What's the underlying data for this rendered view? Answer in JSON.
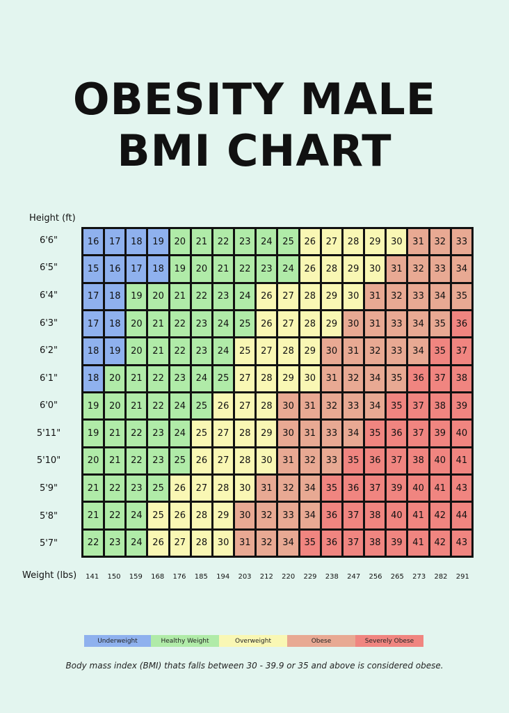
{
  "title_line1": "OBESITY MALE",
  "title_line2": "BMI CHART",
  "footnote": "Body mass index (BMI) thats falls between 30 - 39.9 or 35 and above is considered obese.",
  "colors": {
    "underweight": "#8fb1ee",
    "healthy": "#b0eba8",
    "overweight": "#f9f7b4",
    "obese": "#e8a993",
    "severe": "#f08580"
  },
  "legend": [
    {
      "label": "Underweight",
      "key": "underweight"
    },
    {
      "label": "Healthy Weight",
      "key": "healthy"
    },
    {
      "label": "Overweight",
      "key": "overweight"
    },
    {
      "label": "Obese",
      "key": "obese"
    },
    {
      "label": "Severely Obese",
      "key": "severe"
    }
  ],
  "chart_data": {
    "type": "heatmap",
    "ylabel": "Height (ft)",
    "xlabel": "Weight (lbs)",
    "rows": [
      "6'6\"",
      "6'5\"",
      "6'4\"",
      "6'3\"",
      "6'2\"",
      "6'1\"",
      "6'0\"",
      "5'11\"",
      "5'10\"",
      "5'9\"",
      "5'8\"",
      "5'7\""
    ],
    "columns": [
      "141",
      "150",
      "159",
      "168",
      "176",
      "185",
      "194",
      "203",
      "212",
      "220",
      "229",
      "238",
      "247",
      "256",
      "265",
      "273",
      "282",
      "291"
    ],
    "values": [
      [
        16,
        17,
        18,
        19,
        20,
        21,
        22,
        23,
        24,
        25,
        26,
        27,
        28,
        29,
        30,
        31,
        32,
        33
      ],
      [
        15,
        16,
        17,
        18,
        19,
        20,
        21,
        22,
        23,
        24,
        26,
        28,
        29,
        30,
        31,
        32,
        33,
        34
      ],
      [
        17,
        18,
        19,
        20,
        21,
        22,
        23,
        24,
        26,
        27,
        28,
        29,
        30,
        31,
        32,
        33,
        34,
        35
      ],
      [
        17,
        18,
        20,
        21,
        22,
        23,
        24,
        25,
        26,
        27,
        28,
        29,
        30,
        31,
        33,
        34,
        35,
        36
      ],
      [
        18,
        19,
        20,
        21,
        22,
        23,
        24,
        25,
        27,
        28,
        29,
        30,
        31,
        32,
        33,
        34,
        35,
        37
      ],
      [
        18,
        20,
        21,
        22,
        23,
        24,
        25,
        27,
        28,
        29,
        30,
        31,
        32,
        34,
        35,
        36,
        37,
        38
      ],
      [
        19,
        20,
        21,
        22,
        24,
        25,
        26,
        27,
        28,
        30,
        31,
        32,
        33,
        34,
        35,
        37,
        38,
        39
      ],
      [
        19,
        21,
        22,
        23,
        24,
        25,
        27,
        28,
        29,
        30,
        31,
        33,
        34,
        35,
        36,
        37,
        39,
        40
      ],
      [
        20,
        21,
        22,
        23,
        25,
        26,
        27,
        28,
        30,
        31,
        32,
        33,
        35,
        36,
        37,
        38,
        40,
        41
      ],
      [
        21,
        22,
        23,
        25,
        26,
        27,
        28,
        30,
        31,
        32,
        34,
        35,
        36,
        37,
        39,
        40,
        41,
        43
      ],
      [
        21,
        22,
        24,
        25,
        26,
        28,
        29,
        30,
        32,
        33,
        34,
        36,
        37,
        38,
        40,
        41,
        42,
        44
      ],
      [
        22,
        23,
        24,
        26,
        27,
        28,
        30,
        31,
        32,
        34,
        35,
        36,
        37,
        38,
        39,
        41,
        42,
        43
      ]
    ],
    "categories_by_row": [
      [
        "underweight",
        "underweight",
        "underweight",
        "underweight",
        "healthy",
        "healthy",
        "healthy",
        "healthy",
        "healthy",
        "healthy",
        "overweight",
        "overweight",
        "overweight",
        "overweight",
        "overweight",
        "obese",
        "obese",
        "obese"
      ],
      [
        "underweight",
        "underweight",
        "underweight",
        "underweight",
        "healthy",
        "healthy",
        "healthy",
        "healthy",
        "healthy",
        "healthy",
        "overweight",
        "overweight",
        "overweight",
        "overweight",
        "obese",
        "obese",
        "obese",
        "obese"
      ],
      [
        "underweight",
        "underweight",
        "healthy",
        "healthy",
        "healthy",
        "healthy",
        "healthy",
        "healthy",
        "overweight",
        "overweight",
        "overweight",
        "overweight",
        "overweight",
        "obese",
        "obese",
        "obese",
        "obese",
        "obese"
      ],
      [
        "underweight",
        "underweight",
        "healthy",
        "healthy",
        "healthy",
        "healthy",
        "healthy",
        "healthy",
        "overweight",
        "overweight",
        "overweight",
        "overweight",
        "obese",
        "obese",
        "obese",
        "obese",
        "obese",
        "severe"
      ],
      [
        "underweight",
        "underweight",
        "healthy",
        "healthy",
        "healthy",
        "healthy",
        "healthy",
        "overweight",
        "overweight",
        "overweight",
        "overweight",
        "obese",
        "obese",
        "obese",
        "obese",
        "obese",
        "severe",
        "severe"
      ],
      [
        "underweight",
        "healthy",
        "healthy",
        "healthy",
        "healthy",
        "healthy",
        "healthy",
        "overweight",
        "overweight",
        "overweight",
        "overweight",
        "obese",
        "obese",
        "obese",
        "obese",
        "severe",
        "severe",
        "severe"
      ],
      [
        "healthy",
        "healthy",
        "healthy",
        "healthy",
        "healthy",
        "healthy",
        "overweight",
        "overweight",
        "overweight",
        "obese",
        "obese",
        "obese",
        "obese",
        "obese",
        "severe",
        "severe",
        "severe",
        "severe"
      ],
      [
        "healthy",
        "healthy",
        "healthy",
        "healthy",
        "healthy",
        "overweight",
        "overweight",
        "overweight",
        "overweight",
        "obese",
        "obese",
        "obese",
        "obese",
        "severe",
        "severe",
        "severe",
        "severe",
        "severe"
      ],
      [
        "healthy",
        "healthy",
        "healthy",
        "healthy",
        "healthy",
        "overweight",
        "overweight",
        "overweight",
        "overweight",
        "obese",
        "obese",
        "obese",
        "severe",
        "severe",
        "severe",
        "severe",
        "severe",
        "severe"
      ],
      [
        "healthy",
        "healthy",
        "healthy",
        "healthy",
        "overweight",
        "overweight",
        "overweight",
        "overweight",
        "obese",
        "obese",
        "obese",
        "severe",
        "severe",
        "severe",
        "severe",
        "severe",
        "severe",
        "severe"
      ],
      [
        "healthy",
        "healthy",
        "healthy",
        "overweight",
        "overweight",
        "overweight",
        "overweight",
        "obese",
        "obese",
        "obese",
        "obese",
        "severe",
        "severe",
        "severe",
        "severe",
        "severe",
        "severe",
        "severe"
      ],
      [
        "healthy",
        "healthy",
        "healthy",
        "overweight",
        "overweight",
        "overweight",
        "overweight",
        "obese",
        "obese",
        "obese",
        "severe",
        "severe",
        "severe",
        "severe",
        "severe",
        "severe",
        "severe",
        "severe"
      ]
    ]
  }
}
